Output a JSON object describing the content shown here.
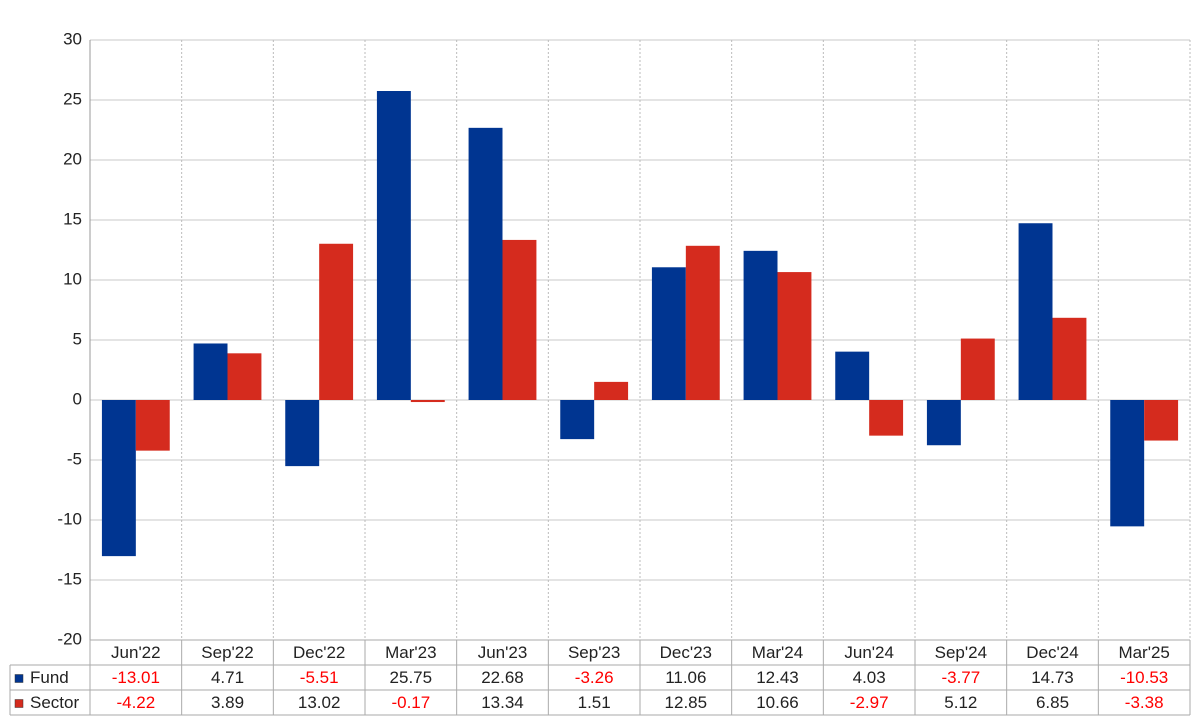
{
  "chart_data": {
    "type": "bar",
    "categories": [
      "Jun'22",
      "Sep'22",
      "Dec'22",
      "Mar'23",
      "Jun'23",
      "Sep'23",
      "Dec'23",
      "Mar'24",
      "Jun'24",
      "Sep'24",
      "Dec'24",
      "Mar'25"
    ],
    "series": [
      {
        "name": "Fund",
        "color": "#003591",
        "values": [
          -13.01,
          4.71,
          -5.51,
          25.75,
          22.68,
          -3.26,
          11.06,
          12.43,
          4.03,
          -3.77,
          14.73,
          -10.53
        ]
      },
      {
        "name": "Sector",
        "color": "#d52b1e",
        "values": [
          -4.22,
          3.89,
          13.02,
          -0.17,
          13.34,
          1.51,
          12.85,
          10.66,
          -2.97,
          5.12,
          6.85,
          -3.38
        ]
      }
    ],
    "ylim": [
      -20,
      30
    ],
    "yticks": [
      -20,
      -15,
      -10,
      -5,
      0,
      5,
      10,
      15,
      20,
      25,
      30
    ],
    "grid": true,
    "negative_label_color": "#ff0000"
  }
}
